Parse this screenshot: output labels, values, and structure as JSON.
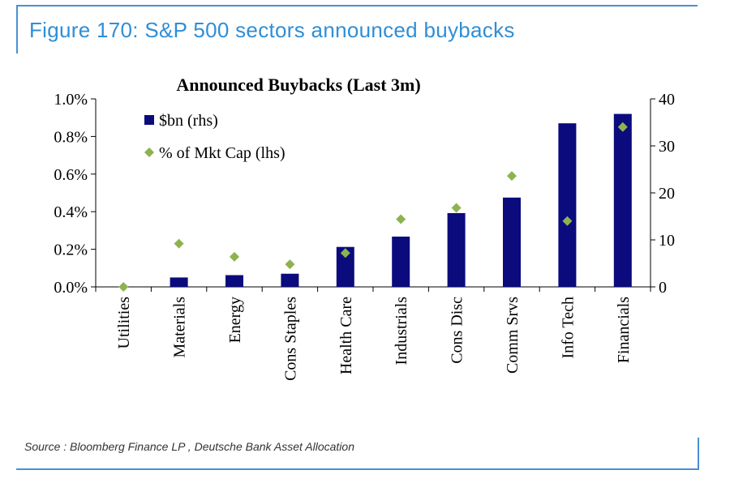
{
  "header": {
    "figure_title": "Figure 170: S&P 500 sectors announced buybacks"
  },
  "footer": {
    "source": "Source : Bloomberg Finance LP , Deutsche Bank Asset Allocation"
  },
  "colors": {
    "frame": "#4a8fd1",
    "figure_title": "#2f8ed6",
    "bars": "#0b0b7d",
    "markers": "#8db34f"
  },
  "chart_data": {
    "type": "bar",
    "title": "Announced Buybacks (Last 3m)",
    "categories": [
      "Utilities",
      "Materials",
      "Energy",
      "Cons Staples",
      "Health Care",
      "Industrials",
      "Cons Disc",
      "Comm Srvs",
      "Info Tech",
      "Financials"
    ],
    "series": [
      {
        "name": "$bn (rhs)",
        "type": "bar",
        "axis": "right",
        "values": [
          0,
          2.0,
          2.5,
          2.8,
          8.5,
          10.7,
          15.7,
          19.0,
          34.8,
          36.8
        ]
      },
      {
        "name": "% of Mkt Cap (lhs)",
        "type": "scatter",
        "marker": "diamond",
        "axis": "left",
        "values": [
          0.0,
          0.23,
          0.16,
          0.12,
          0.18,
          0.36,
          0.42,
          0.59,
          0.35,
          0.85
        ]
      }
    ],
    "y_left": {
      "min": 0,
      "max": 1.0,
      "ticks": [
        0,
        0.2,
        0.4,
        0.6,
        0.8,
        1.0
      ],
      "tick_labels": [
        "0.0%",
        "0.2%",
        "0.4%",
        "0.6%",
        "0.8%",
        "1.0%"
      ]
    },
    "y_right": {
      "min": 0,
      "max": 40,
      "ticks": [
        0,
        10,
        20,
        30,
        40
      ],
      "tick_labels": [
        "0",
        "10",
        "20",
        "30",
        "40"
      ]
    },
    "legend_position": "top-left",
    "grid": false
  }
}
